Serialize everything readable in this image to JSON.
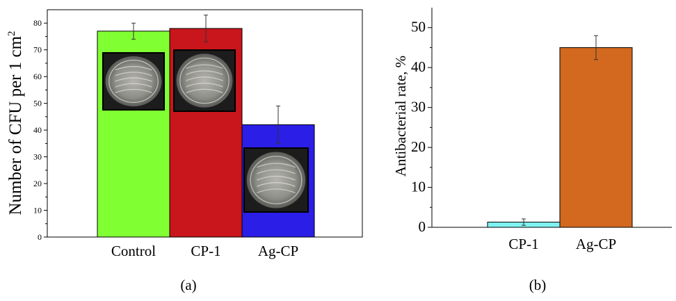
{
  "figure": {
    "panels": [
      {
        "panel_label": "(a)"
      },
      {
        "panel_label": "(b)"
      }
    ]
  },
  "chart_data": [
    {
      "type": "bar",
      "panel": "(a)",
      "categories": [
        "Control",
        "CP-1",
        "Ag-CP"
      ],
      "values": [
        77,
        78,
        42
      ],
      "error": [
        3,
        5,
        7
      ],
      "colors": [
        "#80ff33",
        "#c8161c",
        "#2b1ee6"
      ],
      "xlabel": "",
      "ylabel": "Number of CFU per 1 cm",
      "ylabel_sup": "2",
      "ylim": [
        0,
        85
      ],
      "yticks": [
        0,
        10,
        20,
        30,
        40,
        50,
        60,
        70,
        80
      ],
      "grid": false,
      "insets": "petri dish photographs on each bar"
    },
    {
      "type": "bar",
      "panel": "(b)",
      "categories": [
        "CP-1",
        "Ag-CP"
      ],
      "values": [
        1.3,
        45
      ],
      "error": [
        0.8,
        3
      ],
      "colors": [
        "#7ff2f2",
        "#d2691e"
      ],
      "xlabel": "",
      "ylabel": "Antibacterial rate, %",
      "ylim": [
        0,
        55
      ],
      "yticks": [
        0,
        10,
        20,
        30,
        40,
        50
      ],
      "grid": false
    }
  ]
}
